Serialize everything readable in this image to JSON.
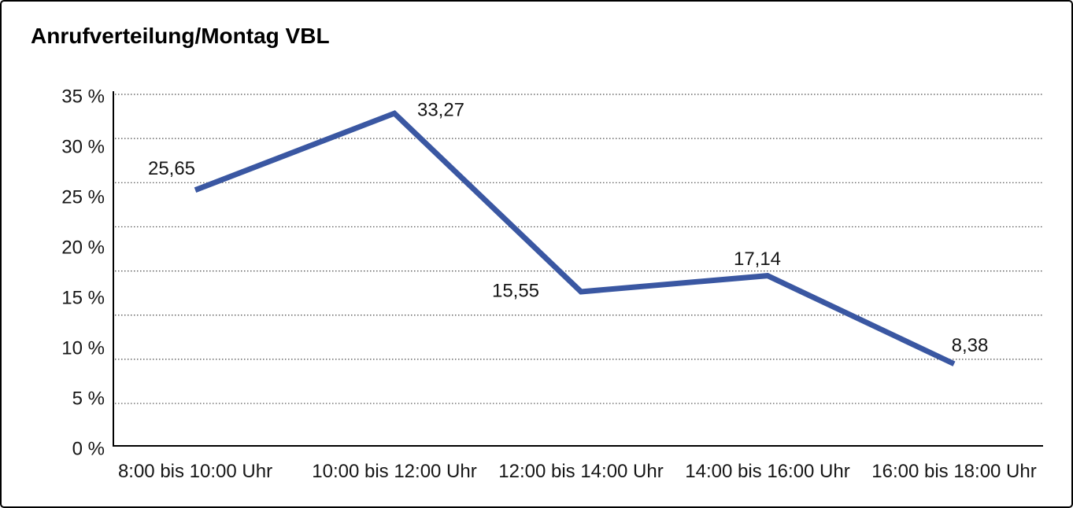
{
  "header": {
    "title": "Anrufverteilung/Montag VBL"
  },
  "chart_data": {
    "type": "line",
    "title": "Anrufverteilung/Montag VBL",
    "categories": [
      "8:00 bis 10:00 Uhr",
      "10:00 bis 12:00 Uhr",
      "12:00 bis 14:00 Uhr",
      "14:00 bis 16:00 Uhr",
      "16:00 bis 18:00 Uhr"
    ],
    "values": [
      25.65,
      33.27,
      15.55,
      17.14,
      8.38
    ],
    "value_labels": [
      "25,65",
      "33,27",
      "15,55",
      "17,14",
      "8,38"
    ],
    "y_ticks": [
      "35 %",
      "30 %",
      "25 %",
      "20 %",
      "15 %",
      "10 %",
      "5 %",
      "0 %"
    ],
    "ylim": [
      0,
      35
    ],
    "y_unit": "%",
    "xlabel": "",
    "ylabel": "",
    "legend": "none",
    "grid": "horizontal-dotted",
    "line_color": "#3a57a2",
    "text_color": "#161616",
    "axis_color": "#000000",
    "grid_color": "#4a4a4a"
  }
}
